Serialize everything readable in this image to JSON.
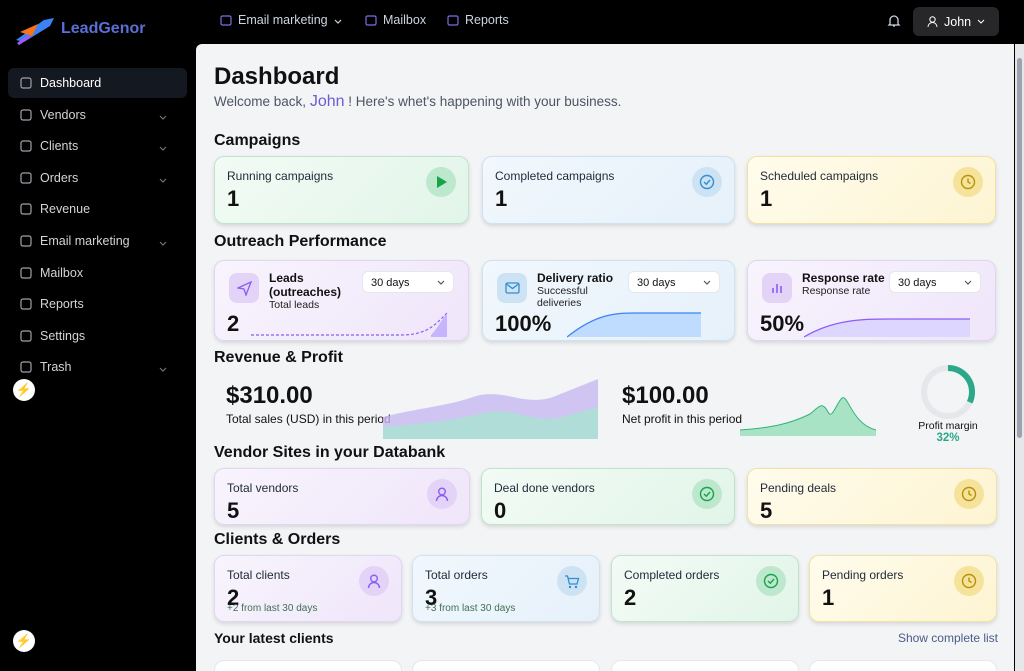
{
  "brand": "LeadGenor",
  "sidebar": {
    "items": [
      "Dashboard",
      "Vendors",
      "Clients",
      "Orders",
      "Revenue",
      "Email marketing",
      "Mailbox",
      "Reports",
      "Settings",
      "Trash"
    ]
  },
  "topnav": {
    "items": [
      "Email marketing",
      "Mailbox",
      "Reports"
    ],
    "user": "John"
  },
  "header": {
    "title": "Dashboard",
    "welcome_prefix": "Welcome back,",
    "user": "John",
    "welcome_suffix": "! Here's whet's happening with your business."
  },
  "campaigns": {
    "title": "Campaigns",
    "cards": [
      {
        "label": "Running campaigns",
        "value": 1
      },
      {
        "label": "Completed campaigns",
        "value": 1
      },
      {
        "label": "Scheduled campaigns",
        "value": 1
      }
    ]
  },
  "outreach": {
    "title": "Outreach Performance",
    "cards": [
      {
        "label": "Leads (outreaches)",
        "sub": "Total leads",
        "period": "30 days",
        "value": "2"
      },
      {
        "label": "Delivery ratio",
        "sub": "Successful deliveries",
        "period": "30 days",
        "value": "100%"
      },
      {
        "label": "Response rate",
        "sub": "Response rate",
        "period": "30 days",
        "value": "50%"
      }
    ]
  },
  "revenue": {
    "title": "Revenue & Profit",
    "total_sales": "$310.00",
    "total_sales_label": "Total sales (USD) in this period",
    "net_profit": "$100.00",
    "net_profit_label": "Net profit in this period",
    "margin_label": "Profit margin",
    "margin": 32,
    "margin_text": "32%"
  },
  "vendors": {
    "title": "Vendor Sites in your Databank",
    "cards": [
      {
        "label": "Total vendors",
        "value": 5
      },
      {
        "label": "Deal done vendors",
        "value": 0
      },
      {
        "label": "Pending deals",
        "value": 5
      }
    ]
  },
  "clients": {
    "title": "Clients & Orders",
    "cards": [
      {
        "label": "Total clients",
        "value": 2,
        "sub": "+2 from last 30 days"
      },
      {
        "label": "Total orders",
        "value": 3,
        "sub": "+3 from last 30 days"
      },
      {
        "label": "Completed orders",
        "value": 2
      },
      {
        "label": "Pending orders",
        "value": 1
      }
    ]
  },
  "latest": {
    "title": "Your latest clients",
    "link": "Show complete list"
  }
}
